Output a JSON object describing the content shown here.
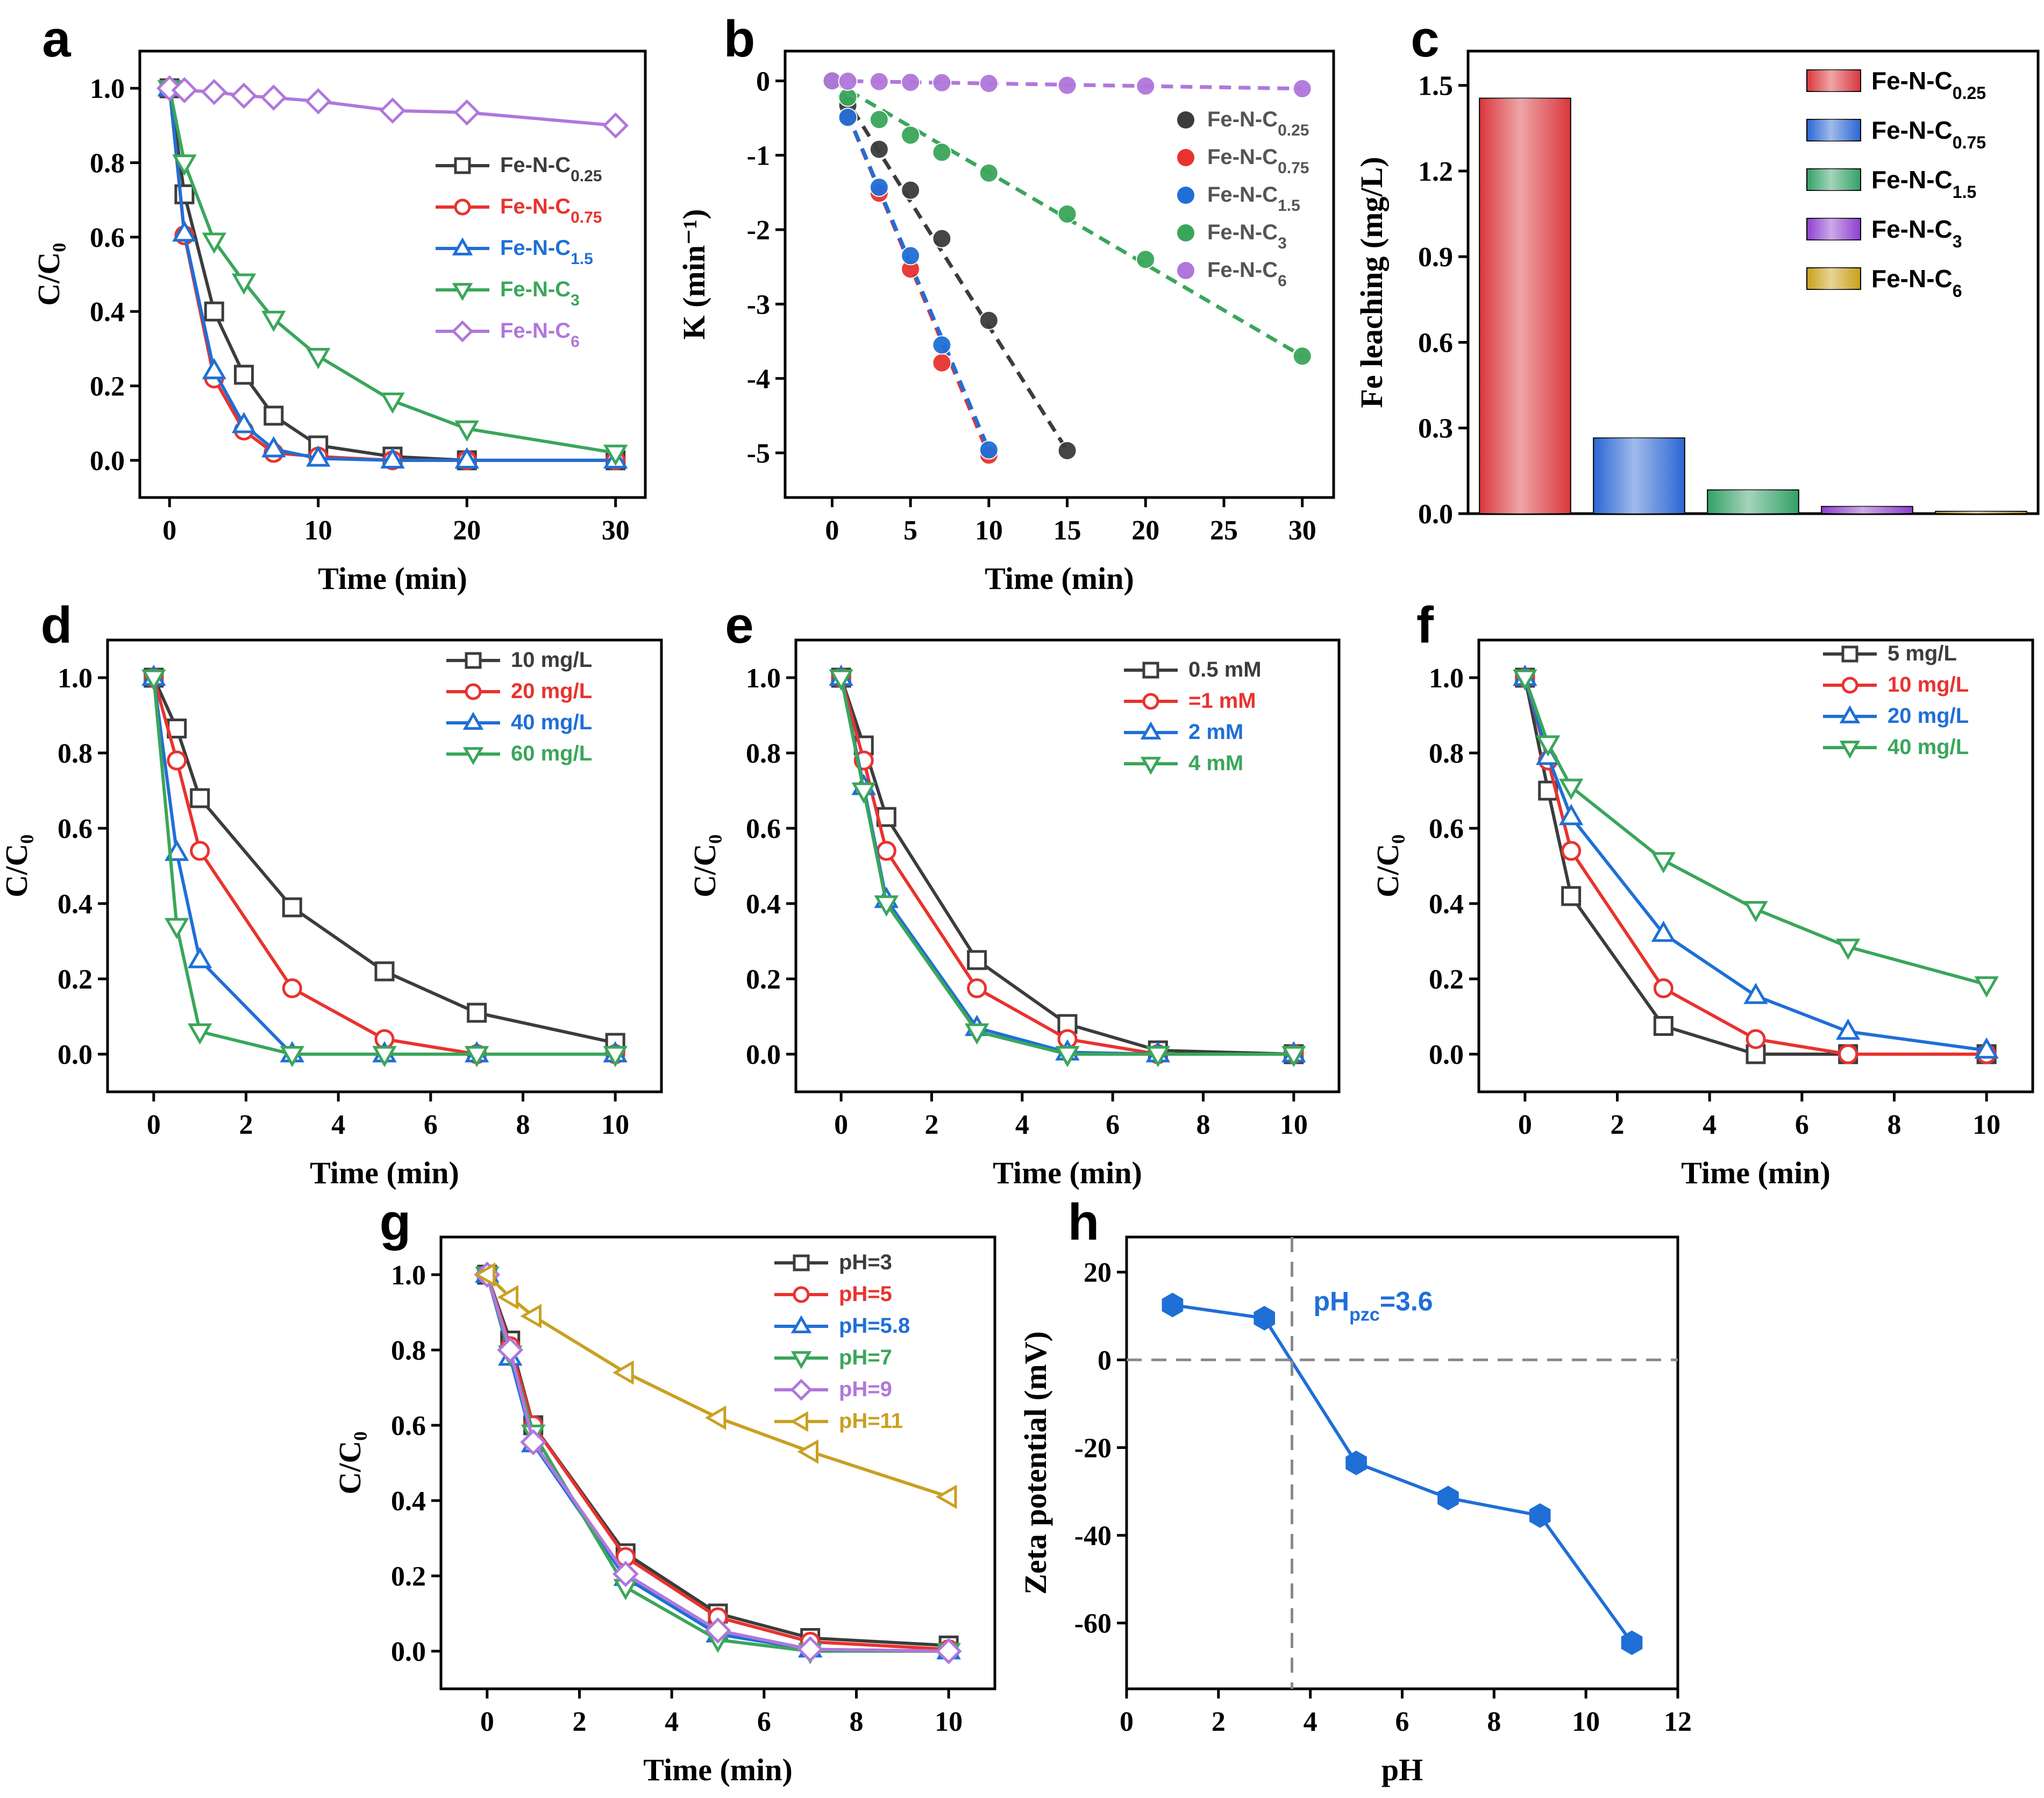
{
  "figure": {
    "colors": {
      "black": "#3c3c3c",
      "red": "#e8332f",
      "blue": "#1f6fd6",
      "green": "#3aa65a",
      "purple": "#b077db",
      "gold": "#c9a021",
      "grey": "#8a8a8a"
    }
  },
  "chart_data": [
    {
      "id": "a",
      "letter": "a",
      "type": "line",
      "xlabel": "Time (min)",
      "ylabel": "C/C₀",
      "xlim": [
        -2,
        32
      ],
      "ylim": [
        -0.1,
        1.1
      ],
      "xticks": [
        0,
        10,
        20,
        30
      ],
      "yticks": [
        0.0,
        0.2,
        0.4,
        0.6,
        0.8,
        1.0
      ],
      "ydecimals": 1,
      "legend_position": "center-right",
      "series": [
        {
          "name": "Fe-N-C₀.₂₅",
          "base": "Fe-N-C",
          "sub": "0.25",
          "color": "#3c3c3c",
          "marker": "square",
          "x": [
            0,
            1,
            3,
            5,
            7,
            10,
            15,
            20,
            30
          ],
          "y": [
            1.0,
            0.715,
            0.4,
            0.23,
            0.12,
            0.04,
            0.01,
            0.0,
            0.0
          ]
        },
        {
          "name": "Fe-N-C₀.₇₅",
          "base": "Fe-N-C",
          "sub": "0.75",
          "color": "#e8332f",
          "marker": "circle",
          "x": [
            0,
            1,
            3,
            5,
            7,
            10,
            15,
            20,
            30
          ],
          "y": [
            1.0,
            0.605,
            0.22,
            0.08,
            0.02,
            0.01,
            0.0,
            0.0,
            0.0
          ]
        },
        {
          "name": "Fe-N-C₁.₅",
          "base": "Fe-N-C",
          "sub": "1.5",
          "color": "#1f6fd6",
          "marker": "triangle-up",
          "x": [
            0,
            1,
            3,
            5,
            7,
            10,
            15,
            20,
            30
          ],
          "y": [
            1.0,
            0.61,
            0.24,
            0.095,
            0.03,
            0.005,
            0.0,
            0.0,
            0.0
          ]
        },
        {
          "name": "Fe-N-C₃",
          "base": "Fe-N-C",
          "sub": "3",
          "color": "#3aa65a",
          "marker": "triangle-down",
          "x": [
            0,
            1,
            3,
            5,
            7,
            10,
            15,
            20,
            30
          ],
          "y": [
            1.0,
            0.8,
            0.59,
            0.48,
            0.38,
            0.28,
            0.16,
            0.085,
            0.02
          ]
        },
        {
          "name": "Fe-N-C₆",
          "base": "Fe-N-C",
          "sub": "6",
          "color": "#b077db",
          "marker": "diamond",
          "x": [
            0,
            1,
            3,
            5,
            7,
            10,
            15,
            20,
            30
          ],
          "y": [
            1.0,
            0.995,
            0.99,
            0.98,
            0.975,
            0.965,
            0.94,
            0.935,
            0.9
          ]
        }
      ]
    },
    {
      "id": "b",
      "letter": "b",
      "type": "scatter",
      "xlabel": "Time (min)",
      "ylabel": "K (min⁻¹)",
      "xlim": [
        -3,
        32
      ],
      "ylim": [
        -5.6,
        0.4
      ],
      "xticks": [
        0,
        5,
        10,
        15,
        20,
        25,
        30
      ],
      "yticks": [
        0,
        -1,
        -2,
        -3,
        -4,
        -5
      ],
      "ydecimals": 0,
      "legend_position": "right",
      "series": [
        {
          "name": "Fe-N-C₀.₂₅",
          "base": "Fe-N-C",
          "sub": "0.25",
          "color": "#3c3c3c",
          "x": [
            0,
            1,
            3,
            5,
            7,
            10,
            15
          ],
          "y": [
            0,
            -0.33,
            -0.92,
            -1.47,
            -2.12,
            -3.22,
            -4.97
          ]
        },
        {
          "name": "Fe-N-C₀.₇₅",
          "base": "Fe-N-C",
          "sub": "0.75",
          "color": "#e8332f",
          "x": [
            0,
            1,
            3,
            5,
            7,
            10
          ],
          "y": [
            0,
            -0.5,
            -1.51,
            -2.53,
            -3.79,
            -5.03
          ]
        },
        {
          "name": "Fe-N-C₁.₅",
          "base": "Fe-N-C",
          "sub": "1.5",
          "color": "#1f6fd6",
          "x": [
            0,
            1,
            3,
            5,
            7,
            10
          ],
          "y": [
            0,
            -0.49,
            -1.43,
            -2.35,
            -3.55,
            -4.96
          ]
        },
        {
          "name": "Fe-N-C₃",
          "base": "Fe-N-C",
          "sub": "3",
          "color": "#3aa65a",
          "x": [
            0,
            1,
            3,
            5,
            7,
            10,
            15,
            20,
            30
          ],
          "y": [
            0,
            -0.22,
            -0.52,
            -0.73,
            -0.96,
            -1.24,
            -1.79,
            -2.4,
            -3.7
          ]
        },
        {
          "name": "Fe-N-C₆",
          "base": "Fe-N-C",
          "sub": "6",
          "color": "#b077db",
          "x": [
            0,
            1,
            3,
            5,
            7,
            10,
            15,
            20,
            30
          ],
          "y": [
            0,
            -0.005,
            -0.01,
            -0.02,
            -0.025,
            -0.035,
            -0.06,
            -0.07,
            -0.105
          ]
        }
      ],
      "fit_lines": [
        {
          "color": "#3c3c3c",
          "x": [
            0,
            15
          ],
          "y": [
            0.05,
            -4.97
          ]
        },
        {
          "color": "#e8332f",
          "x": [
            0,
            10
          ],
          "y": [
            0.05,
            -5.03
          ]
        },
        {
          "color": "#1f6fd6",
          "x": [
            0,
            10
          ],
          "y": [
            0.05,
            -4.96
          ]
        },
        {
          "color": "#3aa65a",
          "x": [
            0,
            30
          ],
          "y": [
            0.0,
            -3.7
          ]
        },
        {
          "color": "#b077db",
          "x": [
            0,
            30
          ],
          "y": [
            0.0,
            -0.105
          ]
        }
      ]
    },
    {
      "id": "c",
      "letter": "c",
      "type": "bar",
      "xlabel": "",
      "ylabel": "Fe leaching (mg/L)",
      "ylim": [
        0.0,
        1.62
      ],
      "yticks": [
        0.0,
        0.3,
        0.6,
        0.9,
        1.2,
        1.5
      ],
      "ydecimals": 1,
      "legend_position": "top-right",
      "bars": [
        {
          "name": "Fe-N-C₀.₂₅",
          "base": "Fe-N-C",
          "sub": "0.25",
          "value": 1.455,
          "color": "#d9373c"
        },
        {
          "name": "Fe-N-C₀.₇₅",
          "base": "Fe-N-C",
          "sub": "0.75",
          "value": 0.265,
          "color": "#2b66d3"
        },
        {
          "name": "Fe-N-C₁.₅",
          "base": "Fe-N-C",
          "sub": "1.5",
          "value": 0.083,
          "color": "#34a067"
        },
        {
          "name": "Fe-N-C₃",
          "base": "Fe-N-C",
          "sub": "3",
          "value": 0.025,
          "color": "#8e3fcf"
        },
        {
          "name": "Fe-N-C₆",
          "base": "Fe-N-C",
          "sub": "6",
          "value": 0.008,
          "color": "#c9a017"
        }
      ]
    },
    {
      "id": "d",
      "letter": "d",
      "type": "line",
      "xlabel": "Time (min)",
      "ylabel": "C/C₀",
      "xlim": [
        -1,
        11
      ],
      "ylim": [
        -0.1,
        1.1
      ],
      "xticks": [
        0,
        2,
        4,
        6,
        8,
        10
      ],
      "yticks": [
        0.0,
        0.2,
        0.4,
        0.6,
        0.8,
        1.0
      ],
      "ydecimals": 1,
      "legend_position": "top-right",
      "series": [
        {
          "name": "10 mg/L",
          "color": "#3c3c3c",
          "marker": "square",
          "x": [
            0,
            0.5,
            1,
            3,
            5,
            7,
            10
          ],
          "y": [
            1.0,
            0.865,
            0.68,
            0.39,
            0.22,
            0.11,
            0.03
          ]
        },
        {
          "name": "20 mg/L",
          "color": "#e8332f",
          "marker": "circle",
          "x": [
            0,
            0.5,
            1,
            3,
            5,
            7,
            10
          ],
          "y": [
            1.0,
            0.78,
            0.54,
            0.175,
            0.04,
            0.0,
            0.0
          ]
        },
        {
          "name": "40 mg/L",
          "color": "#1f6fd6",
          "marker": "triangle-up",
          "x": [
            0,
            0.5,
            1,
            3,
            5,
            7,
            10
          ],
          "y": [
            1.0,
            0.535,
            0.25,
            0.0,
            0.0,
            0.0,
            0.0
          ]
        },
        {
          "name": "60 mg/L",
          "color": "#3aa65a",
          "marker": "triangle-down",
          "x": [
            0,
            0.5,
            1,
            3,
            5,
            7,
            10
          ],
          "y": [
            1.0,
            0.34,
            0.06,
            0.0,
            0.0,
            0.0,
            0.0
          ]
        }
      ]
    },
    {
      "id": "e",
      "letter": "e",
      "type": "line",
      "xlabel": "Time (min)",
      "ylabel": "C/C₀",
      "xlim": [
        -1,
        11
      ],
      "ylim": [
        -0.1,
        1.1
      ],
      "xticks": [
        0,
        2,
        4,
        6,
        8,
        10
      ],
      "yticks": [
        0.0,
        0.2,
        0.4,
        0.6,
        0.8,
        1.0
      ],
      "ydecimals": 1,
      "legend_position": "top-right",
      "series": [
        {
          "name": "0.5 mM",
          "color": "#3c3c3c",
          "marker": "square",
          "x": [
            0,
            0.5,
            1,
            3,
            5,
            7,
            10
          ],
          "y": [
            1.0,
            0.82,
            0.63,
            0.25,
            0.08,
            0.01,
            0.0
          ]
        },
        {
          "name": "=1 mM",
          "color": "#e8332f",
          "marker": "circle",
          "x": [
            0,
            0.5,
            1,
            3,
            5,
            7,
            10
          ],
          "y": [
            1.0,
            0.78,
            0.54,
            0.175,
            0.04,
            0.0,
            0.0
          ]
        },
        {
          "name": "2 mM",
          "color": "#1f6fd6",
          "marker": "triangle-up",
          "x": [
            0,
            0.5,
            1,
            3,
            5,
            7,
            10
          ],
          "y": [
            1.0,
            0.71,
            0.41,
            0.07,
            0.005,
            0.0,
            0.0
          ]
        },
        {
          "name": "4 mM",
          "color": "#3aa65a",
          "marker": "triangle-down",
          "x": [
            0,
            0.5,
            1,
            3,
            5,
            7,
            10
          ],
          "y": [
            1.0,
            0.7,
            0.4,
            0.06,
            0.0,
            0.0,
            0.0
          ]
        }
      ]
    },
    {
      "id": "f",
      "letter": "f",
      "type": "line",
      "xlabel": "Time (min)",
      "ylabel": "C/C₀",
      "xlim": [
        -1,
        11
      ],
      "ylim": [
        -0.1,
        1.1
      ],
      "xticks": [
        0,
        2,
        4,
        6,
        8,
        10
      ],
      "yticks": [
        0.0,
        0.2,
        0.4,
        0.6,
        0.8,
        1.0
      ],
      "ydecimals": 1,
      "legend_position": "top-right",
      "series": [
        {
          "name": "5 mg/L",
          "color": "#3c3c3c",
          "marker": "square",
          "x": [
            0,
            0.5,
            1,
            3,
            5,
            7,
            10
          ],
          "y": [
            1.0,
            0.7,
            0.42,
            0.075,
            0.0,
            0.0,
            0.0
          ]
        },
        {
          "name": "10 mg/L",
          "color": "#e8332f",
          "marker": "circle",
          "x": [
            0,
            0.5,
            1,
            3,
            5,
            7,
            10
          ],
          "y": [
            1.0,
            0.78,
            0.54,
            0.175,
            0.04,
            0.0,
            0.0
          ]
        },
        {
          "name": "20 mg/L",
          "color": "#1f6fd6",
          "marker": "triangle-up",
          "x": [
            0,
            0.5,
            1,
            3,
            5,
            7,
            10
          ],
          "y": [
            1.0,
            0.79,
            0.63,
            0.32,
            0.155,
            0.06,
            0.01
          ]
        },
        {
          "name": "40 mg/L",
          "color": "#3aa65a",
          "marker": "triangle-down",
          "x": [
            0,
            0.5,
            1,
            3,
            5,
            7,
            10
          ],
          "y": [
            1.0,
            0.825,
            0.71,
            0.515,
            0.385,
            0.285,
            0.185
          ]
        }
      ]
    },
    {
      "id": "g",
      "letter": "g",
      "type": "line",
      "xlabel": "Time (min)",
      "ylabel": "C/C₀",
      "xlim": [
        -1,
        11
      ],
      "ylim": [
        -0.1,
        1.1
      ],
      "xticks": [
        0,
        2,
        4,
        6,
        8,
        10
      ],
      "yticks": [
        0.0,
        0.2,
        0.4,
        0.6,
        0.8,
        1.0
      ],
      "ydecimals": 1,
      "legend_position": "top-right",
      "series": [
        {
          "name": "pH=3",
          "color": "#3c3c3c",
          "marker": "square",
          "x": [
            0,
            0.5,
            1,
            3,
            5,
            7,
            10
          ],
          "y": [
            1.0,
            0.825,
            0.6,
            0.26,
            0.1,
            0.035,
            0.015
          ]
        },
        {
          "name": "pH=5",
          "color": "#e8332f",
          "marker": "circle",
          "x": [
            0,
            0.5,
            1,
            3,
            5,
            7,
            10
          ],
          "y": [
            1.0,
            0.81,
            0.6,
            0.25,
            0.09,
            0.025,
            0.005
          ]
        },
        {
          "name": "pH=5.8",
          "color": "#1f6fd6",
          "marker": "triangle-up",
          "x": [
            0,
            0.5,
            1,
            3,
            5,
            7,
            10
          ],
          "y": [
            1.0,
            0.78,
            0.55,
            0.195,
            0.045,
            0.005,
            0.0
          ]
        },
        {
          "name": "pH=7",
          "color": "#3aa65a",
          "marker": "triangle-down",
          "x": [
            0,
            0.5,
            1,
            3,
            5,
            7,
            10
          ],
          "y": [
            1.0,
            0.79,
            0.58,
            0.17,
            0.03,
            0.0,
            0.0
          ]
        },
        {
          "name": "pH=9",
          "color": "#b077db",
          "marker": "diamond",
          "x": [
            0,
            0.5,
            1,
            3,
            5,
            7,
            10
          ],
          "y": [
            1.0,
            0.8,
            0.555,
            0.205,
            0.055,
            0.005,
            0.0
          ]
        },
        {
          "name": "pH=11",
          "color": "#c9a021",
          "marker": "triangle-left",
          "x": [
            0,
            0.5,
            1,
            3,
            5,
            7,
            10
          ],
          "y": [
            1.0,
            0.94,
            0.89,
            0.74,
            0.62,
            0.53,
            0.41
          ]
        }
      ]
    },
    {
      "id": "h",
      "letter": "h",
      "type": "line",
      "xlabel": "pH",
      "ylabel": "Zeta potential (mV)",
      "xlim": [
        0,
        12
      ],
      "ylim": [
        -75,
        28
      ],
      "xticks": [
        0,
        2,
        4,
        6,
        8,
        10,
        12
      ],
      "yticks": [
        20,
        0,
        -20,
        -40,
        -60
      ],
      "ydecimals": 0,
      "annotation": {
        "base": "pH",
        "sub": "pzc",
        "rest": "=3.6",
        "pzc": 3.6,
        "color": "#1f6fd6"
      },
      "series": [
        {
          "name": "Zeta potential",
          "color": "#1f6fd6",
          "marker": "hexagon",
          "x": [
            1,
            3,
            5,
            7,
            9,
            11
          ],
          "y": [
            12.5,
            9.5,
            -23.5,
            -31.5,
            -35.5,
            -64.5
          ]
        }
      ]
    }
  ]
}
